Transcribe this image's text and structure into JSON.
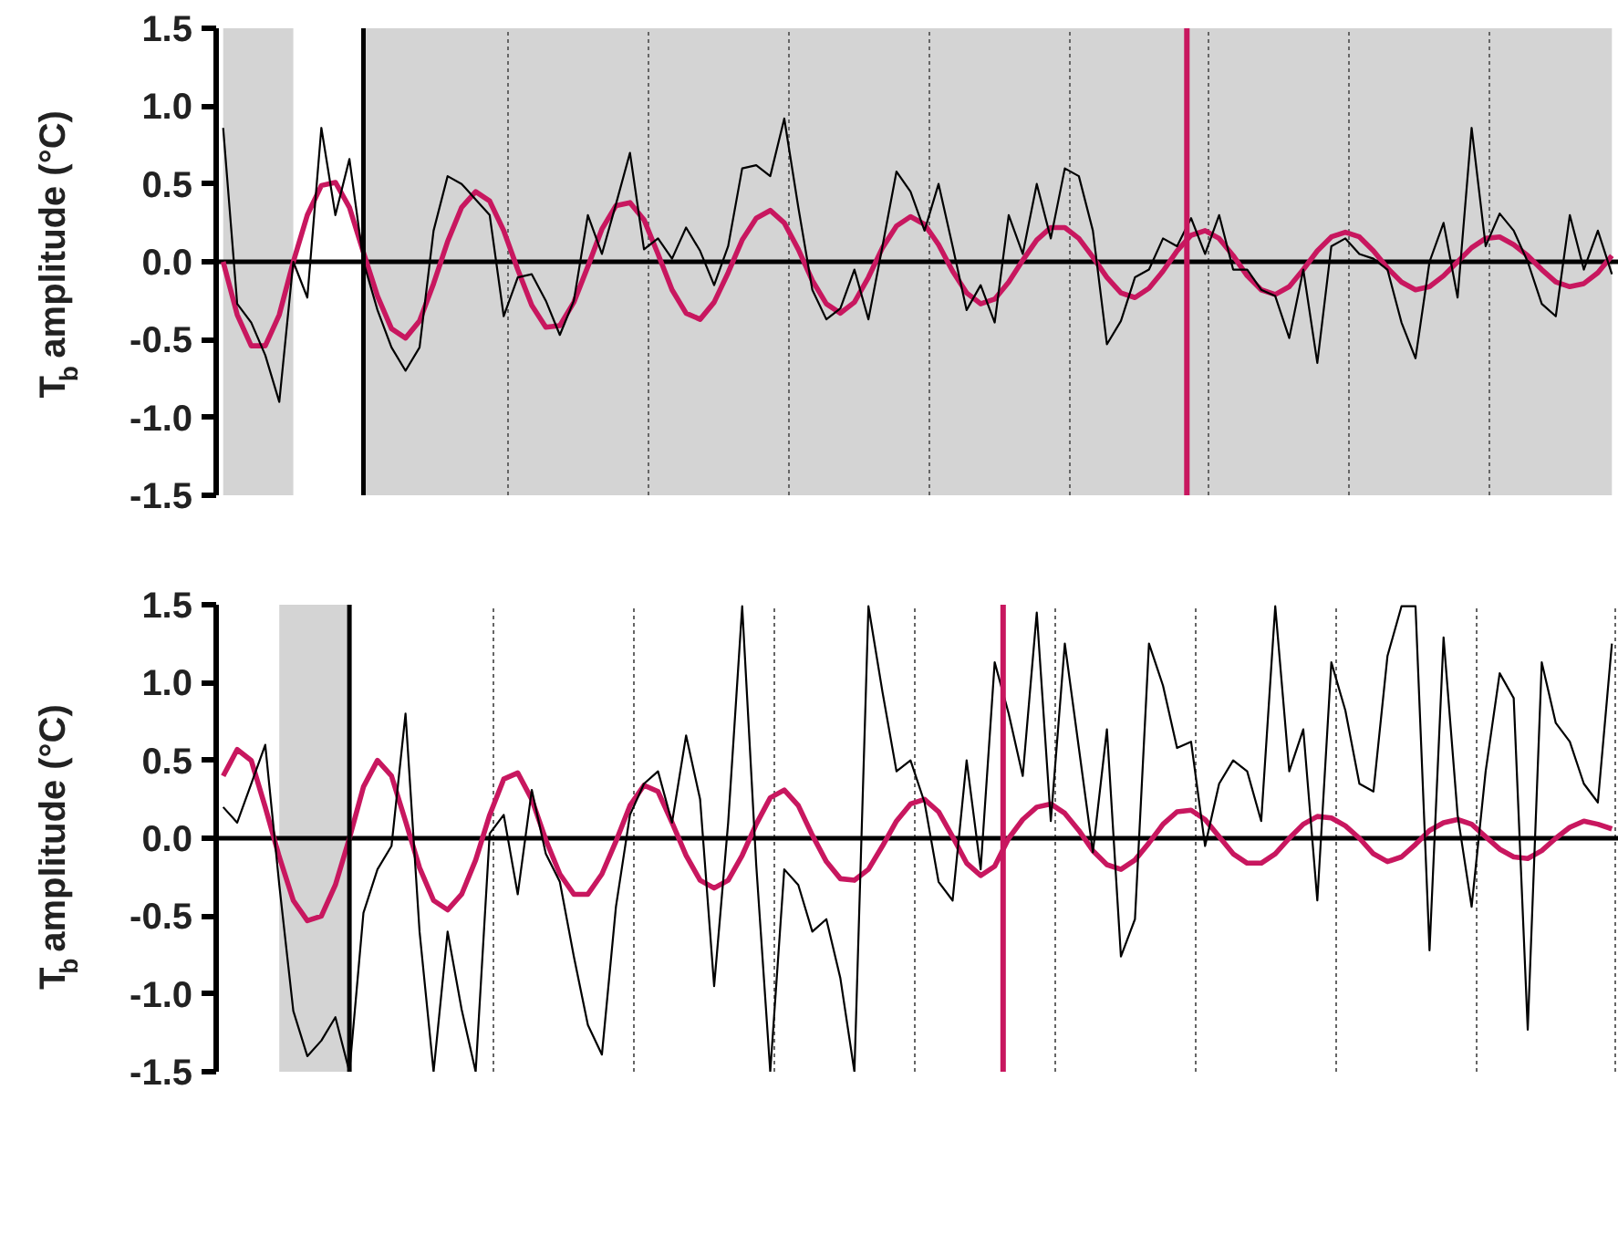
{
  "chart_data": [
    {
      "type": "line",
      "ylabel": "T$_{b}$ amplitude (°C)",
      "ylim": [
        -1.5,
        1.5
      ],
      "yticks": [
        {
          "value": -1.5,
          "label": "-1.5"
        },
        {
          "value": -1.0,
          "label": "-1.0"
        },
        {
          "value": -0.5,
          "label": "-0.5"
        },
        {
          "value": 0,
          "label": "0.0"
        },
        {
          "value": 0.5,
          "label": "0.5"
        },
        {
          "value": 1.0,
          "label": "1.0"
        },
        {
          "value": 1.5,
          "label": "1.5"
        }
      ],
      "categories": [
        null,
        null,
        null,
        null,
        null,
        null,
        null,
        null,
        null,
        null,
        null,
        null,
        null,
        null,
        null,
        null,
        null,
        null,
        null,
        null,
        null,
        null,
        null,
        null,
        null,
        null,
        null,
        null,
        null,
        null,
        null,
        null,
        null,
        null,
        null,
        null,
        null,
        null,
        null,
        null,
        null,
        null,
        null,
        null,
        null,
        null,
        null,
        null,
        null,
        null,
        null,
        null,
        null,
        null,
        null,
        null,
        null,
        null,
        null,
        null,
        null,
        null,
        null,
        null,
        null,
        null,
        null,
        null,
        null,
        null,
        null,
        null,
        null,
        null,
        null,
        null,
        null,
        null,
        null,
        null,
        null,
        null,
        null,
        null,
        null,
        null,
        null,
        null,
        null,
        null,
        null,
        null,
        null,
        null,
        null,
        null,
        null,
        null,
        null,
        null
      ],
      "tick_labels": "y",
      "grid": "x",
      "ref_lines": [
        {
          "axis": "y",
          "value": 0,
          "color": "#000000"
        }
      ],
      "series": [
        {
          "color": "#000000",
          "values": [
            0.86,
            -0.27,
            -0.39,
            -0.6,
            -0.9,
            0,
            -0.23,
            0.86,
            0.3,
            0.66,
            0,
            -0.31,
            -0.55,
            -0.7,
            -0.55,
            0.2,
            0.55,
            0.5,
            0.4,
            0.3,
            -0.35,
            -0.1,
            -0.08,
            -0.25,
            -0.47,
            -0.25,
            0.3,
            0.05,
            0.37,
            0.7,
            0.08,
            0.15,
            0.02,
            0.22,
            0.07,
            -0.15,
            0.1,
            0.6,
            0.62,
            0.55,
            0.92,
            0.35,
            -0.18,
            -0.37,
            -0.3,
            -0.05,
            -0.37,
            0.1,
            0.58,
            0.45,
            0.2,
            0.5,
            0.1,
            -0.31,
            -0.15,
            -0.39,
            0.3,
            0.05,
            0.5,
            0.15,
            0.6,
            0.55,
            0.2,
            -0.53,
            -0.38,
            -0.1,
            -0.05,
            0.15,
            0.1,
            0.28,
            0.05,
            0.3,
            -0.05,
            -0.05,
            -0.18,
            -0.22,
            -0.49,
            -0.05,
            -0.65,
            0.1,
            0.15,
            0.05,
            0.02,
            -0.05,
            -0.39,
            -0.62,
            0,
            0.25,
            -0.23,
            0.86,
            0.1,
            0.31,
            0.2,
            0,
            -0.27,
            -0.35,
            0.3,
            -0.05,
            0.2,
            -0.08
          ]
        },
        {
          "color": "#c8175f",
          "values": [
            0,
            -0.34,
            -0.54,
            -0.54,
            -0.34,
            0,
            0.3,
            0.49,
            0.51,
            0.35,
            0.06,
            -0.22,
            -0.43,
            -0.49,
            -0.38,
            -0.14,
            0.13,
            0.35,
            0.45,
            0.39,
            0.2,
            -0.05,
            -0.28,
            -0.42,
            -0.41,
            -0.26,
            -0.03,
            0.21,
            0.36,
            0.38,
            0.27,
            0.05,
            -0.18,
            -0.33,
            -0.37,
            -0.26,
            -0.07,
            0.14,
            0.28,
            0.33,
            0.25,
            0.08,
            -0.12,
            -0.27,
            -0.33,
            -0.26,
            -0.1,
            0.09,
            0.23,
            0.29,
            0.24,
            0.11,
            -0.06,
            -0.2,
            -0.27,
            -0.24,
            -0.13,
            0.01,
            0.14,
            0.22,
            0.22,
            0.15,
            0.03,
            -0.1,
            -0.2,
            -0.23,
            -0.17,
            -0.06,
            0.07,
            0.17,
            0.2,
            0.15,
            0.04,
            -0.09,
            -0.18,
            -0.21,
            -0.16,
            -0.05,
            0.07,
            0.16,
            0.19,
            0.16,
            0.07,
            -0.04,
            -0.13,
            -0.18,
            -0.16,
            -0.09,
            0,
            0.09,
            0.15,
            0.16,
            0.11,
            0.04,
            -0.05,
            -0.13,
            -0.16,
            -0.14,
            -0.07,
            0.04
          ]
        }
      ]
    },
    {
      "type": "line",
      "ylabel": "T$_{b}$ amplitude (°C)",
      "ylim": [
        -1.5,
        1.5
      ],
      "yticks": [
        {
          "value": -1.5,
          "label": "-1.5"
        },
        {
          "value": -1.0,
          "label": "-1.0"
        },
        {
          "value": -0.5,
          "label": "-0.5"
        },
        {
          "value": 0,
          "label": "0.0"
        },
        {
          "value": 0.5,
          "label": "0.5"
        },
        {
          "value": 1.0,
          "label": "1.0"
        },
        {
          "value": 1.5,
          "label": "1.5"
        }
      ],
      "categories": [
        null,
        null,
        null,
        null,
        null,
        null,
        null,
        null,
        null,
        null,
        null,
        null,
        null,
        null,
        null,
        null,
        null,
        null,
        null,
        null,
        null,
        null,
        null,
        null,
        null,
        null,
        null,
        null,
        null,
        null,
        null,
        null,
        null,
        null,
        null,
        null,
        null,
        null,
        null,
        null,
        null,
        null,
        null,
        null,
        null,
        null,
        null,
        null,
        null,
        null,
        null,
        null,
        null,
        null,
        null,
        null,
        null,
        null,
        null,
        null,
        null,
        null,
        null,
        null,
        null,
        null,
        null,
        null,
        null,
        null,
        null,
        null,
        null,
        null,
        null,
        null,
        null,
        null,
        null,
        null,
        null,
        null,
        null,
        null,
        null,
        null,
        null,
        null,
        null,
        null,
        null,
        null,
        null,
        null,
        null,
        null,
        null,
        null,
        null,
        null
      ],
      "tick_labels": "y",
      "grid": "x",
      "ref_lines": [
        {
          "axis": "y",
          "value": 0,
          "color": "#000000"
        }
      ],
      "series": [
        {
          "color": "#000000",
          "values": [
            0.2,
            0.1,
            0.35,
            0.6,
            -0.3,
            -1.11,
            -1.4,
            -1.3,
            -1.15,
            -1.5,
            -0.48,
            -0.2,
            -0.05,
            0.8,
            -0.6,
            -1.5,
            -0.6,
            -1.1,
            -1.5,
            0.03,
            0.15,
            -0.36,
            0.31,
            -0.1,
            -0.28,
            -0.76,
            -1.2,
            -1.39,
            -0.44,
            0.15,
            0.35,
            0.43,
            0.1,
            0.66,
            0.25,
            -0.95,
            0.1,
            1.49,
            -0.17,
            -1.5,
            -0.2,
            -0.3,
            -0.6,
            -0.52,
            -0.9,
            -1.5,
            1.49,
            0.94,
            0.43,
            0.5,
            0.23,
            -0.28,
            -0.4,
            0.5,
            -0.2,
            1.13,
            0.8,
            0.4,
            1.45,
            0.11,
            1.25,
            0.58,
            -0.09,
            0.7,
            -0.76,
            -0.52,
            1.25,
            0.98,
            0.58,
            0.62,
            -0.05,
            0.35,
            0.5,
            0.43,
            0.11,
            1.49,
            0.43,
            0.7,
            -0.4,
            1.13,
            0.82,
            0.35,
            0.3,
            1.17,
            1.49,
            1.49,
            -0.72,
            1.29,
            0.15,
            -0.44,
            0.43,
            1.06,
            0.9,
            -1.23,
            1.13,
            0.74,
            0.62,
            0.35,
            0.23,
            1.25
          ]
        },
        {
          "color": "#c8175f",
          "values": [
            0.4,
            0.57,
            0.5,
            0.2,
            -0.12,
            -0.4,
            -0.53,
            -0.5,
            -0.3,
            0,
            0.33,
            0.5,
            0.4,
            0.11,
            -0.19,
            -0.4,
            -0.46,
            -0.36,
            -0.14,
            0.15,
            0.38,
            0.42,
            0.25,
            -0.01,
            -0.23,
            -0.36,
            -0.36,
            -0.23,
            -0.02,
            0.21,
            0.34,
            0.3,
            0.1,
            -0.11,
            -0.27,
            -0.32,
            -0.27,
            -0.11,
            0.09,
            0.26,
            0.31,
            0.21,
            0.02,
            -0.15,
            -0.26,
            -0.27,
            -0.2,
            -0.05,
            0.11,
            0.22,
            0.25,
            0.17,
            0.01,
            -0.16,
            -0.24,
            -0.18,
            0,
            0.12,
            0.2,
            0.22,
            0.16,
            0.05,
            -0.08,
            -0.17,
            -0.2,
            -0.14,
            -0.03,
            0.09,
            0.17,
            0.18,
            0.12,
            0.01,
            -0.1,
            -0.16,
            -0.16,
            -0.1,
            0,
            0.09,
            0.14,
            0.13,
            0.08,
            0,
            -0.1,
            -0.15,
            -0.12,
            -0.04,
            0.05,
            0.1,
            0.12,
            0.09,
            0.01,
            -0.07,
            -0.12,
            -0.13,
            -0.08,
            0,
            0.07,
            0.11,
            0.09,
            0.06
          ]
        }
      ]
    }
  ]
}
